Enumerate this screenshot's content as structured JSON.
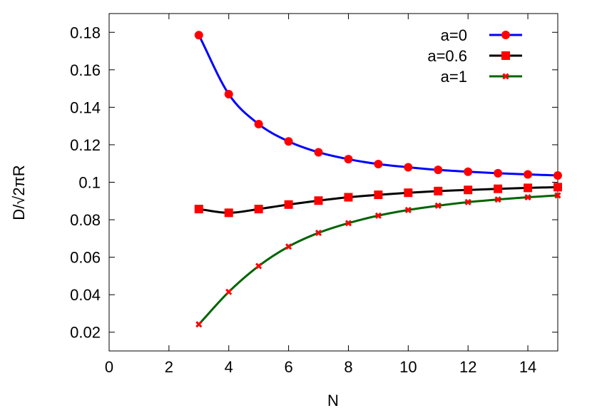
{
  "chart_data": {
    "type": "line",
    "title": "",
    "xlabel": "N",
    "ylabel": "D/√2πR",
    "xlim": [
      0,
      15
    ],
    "ylim": [
      0.01,
      0.19
    ],
    "xticks": [
      0,
      2,
      4,
      6,
      8,
      10,
      12,
      14
    ],
    "xtick_labels": [
      "0",
      "2",
      "4",
      "6",
      "8",
      "10",
      "12",
      "14"
    ],
    "yticks": [
      0.02,
      0.04,
      0.06,
      0.08,
      0.1,
      0.12,
      0.14,
      0.16,
      0.18
    ],
    "ytick_labels": [
      "0.02",
      "0.04",
      "0.06",
      "0.08",
      "0.1",
      "0.12",
      "0.14",
      "0.16",
      "0.18"
    ],
    "grid": false,
    "legend_position": "top-right",
    "x": [
      3,
      4,
      5,
      6,
      7,
      8,
      9,
      10,
      11,
      12,
      13,
      14,
      15
    ],
    "series": [
      {
        "name": "a=0",
        "color": "#0000ff",
        "marker": "circle",
        "marker_color": "#ff0000",
        "values": [
          0.1785,
          0.147,
          0.131,
          0.1218,
          0.116,
          0.1123,
          0.1097,
          0.108,
          0.1066,
          0.1056,
          0.1048,
          0.1042,
          0.1036
        ]
      },
      {
        "name": "a=0.6",
        "color": "#000000",
        "marker": "square",
        "marker_color": "#ff0000",
        "values": [
          0.0857,
          0.0837,
          0.0857,
          0.0881,
          0.0902,
          0.092,
          0.0933,
          0.0944,
          0.0953,
          0.0959,
          0.0965,
          0.097,
          0.0974
        ]
      },
      {
        "name": "a=1",
        "color": "#006400",
        "marker": "x",
        "marker_color": "#ff0000",
        "values": [
          0.0242,
          0.0415,
          0.0553,
          0.0657,
          0.073,
          0.0782,
          0.0822,
          0.0852,
          0.0875,
          0.0894,
          0.0908,
          0.092,
          0.093
        ]
      }
    ]
  }
}
